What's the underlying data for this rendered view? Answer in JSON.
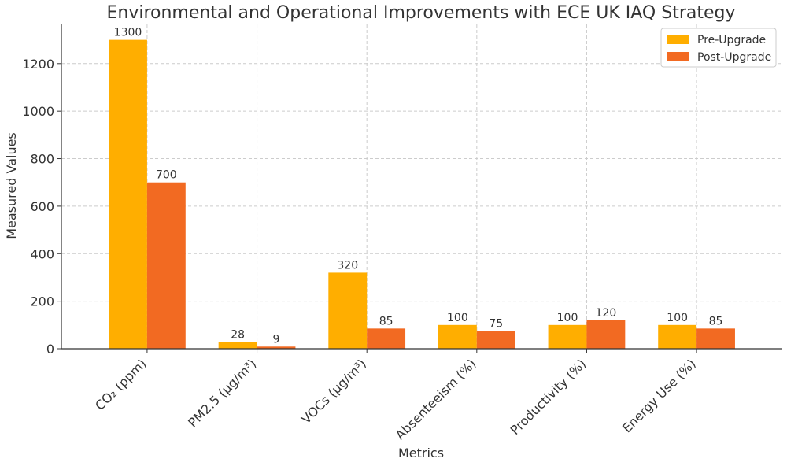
{
  "chart_data": {
    "type": "bar",
    "title": "Environmental and Operational Improvements with ECE UK IAQ Strategy",
    "xlabel": "Metrics",
    "ylabel": "Measured Values",
    "categories": [
      "CO₂ (ppm)",
      "PM2.5 (µg/m³)",
      "VOCs (µg/m³)",
      "Absenteeism (%)",
      "Productivity (%)",
      "Energy Use (%)"
    ],
    "series": [
      {
        "name": "Pre-Upgrade",
        "values": [
          1300,
          28,
          320,
          100,
          100,
          100
        ],
        "color": "#FFAE00"
      },
      {
        "name": "Post-Upgrade",
        "values": [
          700,
          9,
          85,
          75,
          120,
          85
        ],
        "color": "#F26A22"
      }
    ],
    "yticks": [
      0,
      200,
      400,
      600,
      800,
      1000,
      1200
    ],
    "ylim": [
      0,
      1365
    ],
    "grid": true,
    "legend_position": "top-right"
  }
}
